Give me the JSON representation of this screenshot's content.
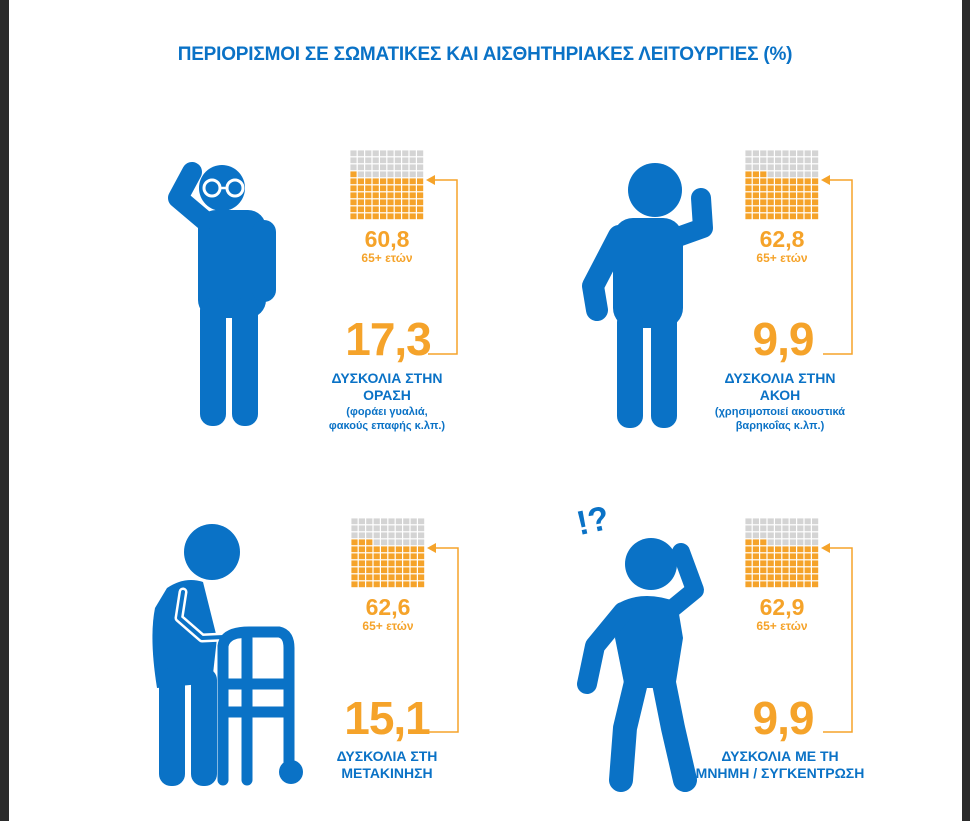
{
  "title": "ΠΕΡΙΟΡΙΣΜΟΙ ΣΕ ΣΩΜΑΤΙΚΕΣ ΚΑΙ ΑΙΣΘΗΤΗΡΙΑΚΕΣ ΛΕΙΤΟΥΡΓΙΕΣ (%)",
  "colors": {
    "blue": "#0a72c6",
    "orange": "#f5a32a",
    "grid_empty": "#d4d4d4"
  },
  "panels": [
    {
      "icon": "person-with-glasses-icon",
      "elderly_pct": "60,8",
      "elderly_fraction": 0.608,
      "age_label": "65+ ετών",
      "pct": "17,3",
      "label_line1": "ΔΥΣΚΟΛΙΑ ΣΤΗΝ",
      "label_line2": "ΟΡΑΣΗ",
      "note_line1": "(φοράει γυαλιά,",
      "note_line2": "φακούς επαφής κ.λπ.)"
    },
    {
      "icon": "person-hand-to-ear-icon",
      "elderly_pct": "62,8",
      "elderly_fraction": 0.628,
      "age_label": "65+ ετών",
      "pct": "9,9",
      "label_line1": "ΔΥΣΚΟΛΙΑ ΣΤΗΝ",
      "label_line2": "ΑΚΟΗ",
      "note_line1": "(χρησιμοποιεί ακουστικά",
      "note_line2": "βαρηκοΐας κ.λπ.)"
    },
    {
      "icon": "person-with-walker-icon",
      "elderly_pct": "62,6",
      "elderly_fraction": 0.626,
      "age_label": "65+ ετών",
      "pct": "15,1",
      "label_line1": "ΔΥΣΚΟΛΙΑ ΣΤΗ",
      "label_line2": "ΜΕΤΑΚΙΝΗΣΗ"
    },
    {
      "icon": "confused-person-icon",
      "elderly_pct": "62,9",
      "elderly_fraction": 0.629,
      "age_label": "65+ ετών",
      "pct": "9,9",
      "label_line1": "ΔΥΣΚΟΛΙΑ ΜΕ ΤΗ",
      "label_line2": "ΜΝΗΜΗ / ΣΥΓΚΕΝΤΡΩΣΗ",
      "question_marks": "!?"
    }
  ]
}
